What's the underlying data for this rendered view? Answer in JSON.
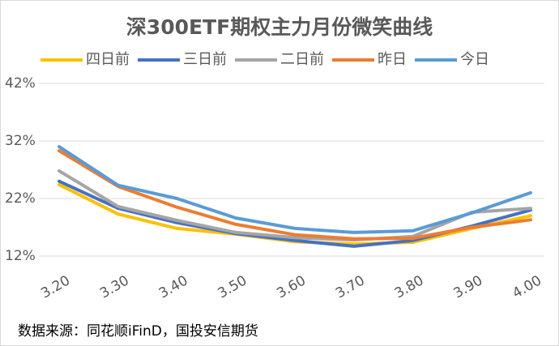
{
  "chart_data": {
    "type": "line",
    "title": "深300ETF期权主力月份微笑曲线",
    "categories": [
      "3.20",
      "3.30",
      "3.40",
      "3.50",
      "3.60",
      "3.70",
      "3.80",
      "3.90",
      "4.00"
    ],
    "series": [
      {
        "name": "四日前",
        "color": "#ffc000",
        "values": [
          24.4,
          19.3,
          16.8,
          15.8,
          14.5,
          14.1,
          14.4,
          16.8,
          19.0
        ]
      },
      {
        "name": "三日前",
        "color": "#4472c4",
        "values": [
          25.0,
          20.3,
          17.8,
          15.9,
          14.7,
          13.7,
          14.7,
          17.2,
          20.0
        ]
      },
      {
        "name": "二日前",
        "color": "#a5a5a5",
        "values": [
          26.8,
          20.6,
          18.2,
          16.1,
          15.2,
          14.8,
          15.4,
          19.6,
          20.3
        ]
      },
      {
        "name": "昨日",
        "color": "#ed7d31",
        "values": [
          30.3,
          24.1,
          20.5,
          17.5,
          15.7,
          15.0,
          15.1,
          17.0,
          18.3
        ]
      },
      {
        "name": "今日",
        "color": "#5b9bd5",
        "values": [
          31.0,
          24.3,
          22.0,
          18.6,
          16.8,
          16.1,
          16.4,
          19.5,
          23.0
        ]
      }
    ],
    "ylim": [
      12,
      42
    ],
    "yticks": [
      {
        "value": 12,
        "label": "12%"
      },
      {
        "value": 22,
        "label": "22%"
      },
      {
        "value": 32,
        "label": "32%"
      },
      {
        "value": 42,
        "label": "42%"
      }
    ],
    "grid": true,
    "legend": "top",
    "source": "数据来源：同花顺iFinD，国投安信期货"
  }
}
